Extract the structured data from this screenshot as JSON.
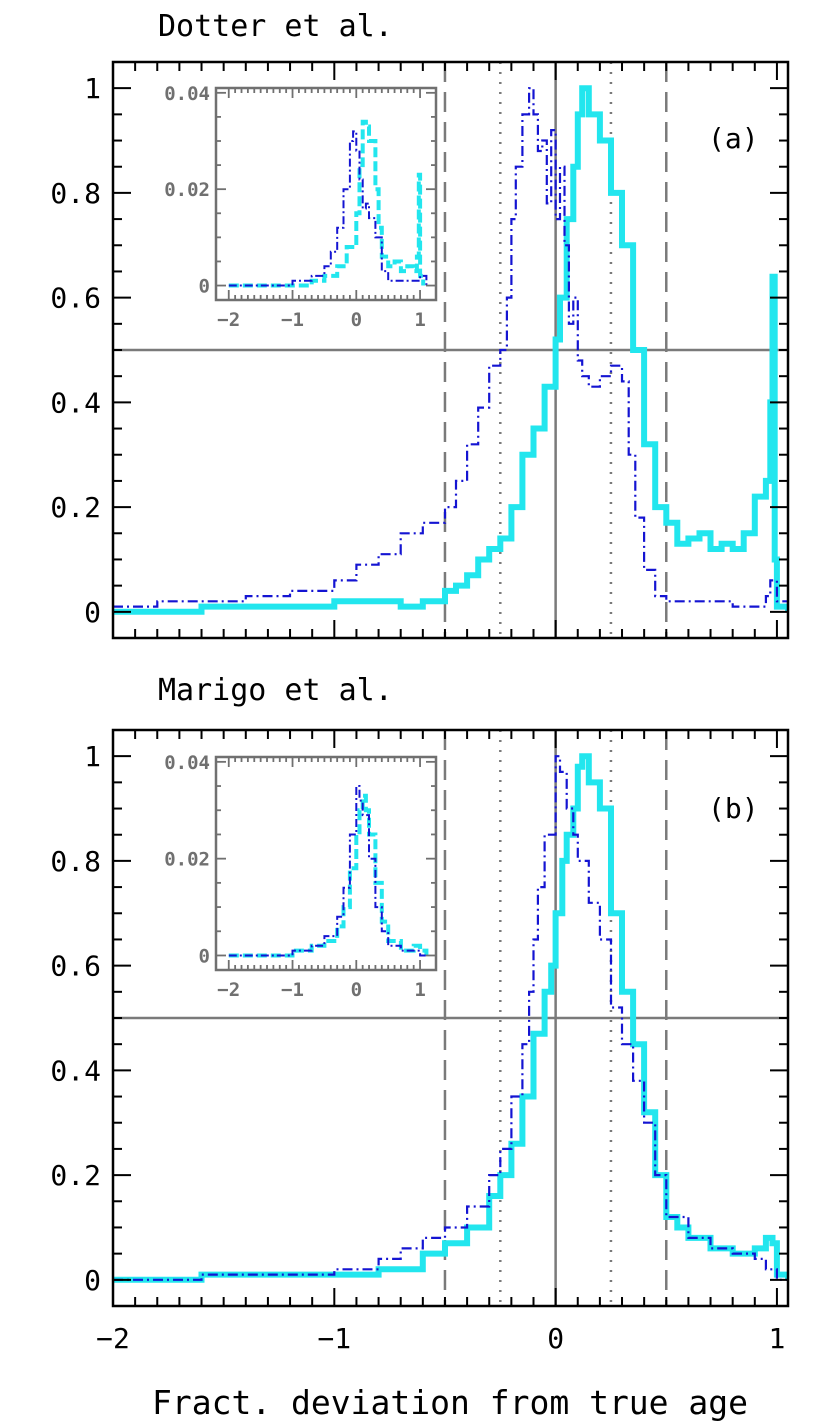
{
  "figure": {
    "xlabel": "Fract. deviation from true age"
  },
  "colors": {
    "series_blue": "#1414d2",
    "series_cyan": "#22e6ee",
    "reference_lines": "#7a7a7a",
    "axes": "#000000",
    "inset_axes": "#707070"
  },
  "chart_data": [
    {
      "type": "line",
      "title": "Dotter et al.",
      "panel_label": "(a)",
      "xlim": [
        -2,
        1.05
      ],
      "ylim": [
        -0.05,
        1.05
      ],
      "xticks": [
        -2,
        -1,
        0,
        1
      ],
      "yticks": [
        0,
        0.2,
        0.4,
        0.6,
        0.8,
        1
      ],
      "ytick_labels": [
        "0",
        "0.2",
        "0.4",
        "0.6",
        "0.8",
        "1"
      ],
      "grid": false,
      "reference_lines": {
        "horizontal_solid": 0.5,
        "vertical_solid": 0,
        "vertical_dotted": [
          -0.25,
          0.25
        ],
        "vertical_dashed": [
          -0.5,
          0.5
        ]
      },
      "series": [
        {
          "style": "dash-dot",
          "x": [
            -2.0,
            -1.8,
            -1.6,
            -1.4,
            -1.2,
            -1.0,
            -0.9,
            -0.8,
            -0.7,
            -0.6,
            -0.5,
            -0.45,
            -0.4,
            -0.35,
            -0.3,
            -0.25,
            -0.22,
            -0.2,
            -0.18,
            -0.15,
            -0.12,
            -0.1,
            -0.08,
            -0.06,
            -0.04,
            -0.02,
            0.0,
            0.02,
            0.04,
            0.06,
            0.08,
            0.1,
            0.12,
            0.15,
            0.2,
            0.25,
            0.3,
            0.33,
            0.36,
            0.4,
            0.45,
            0.5,
            0.6,
            0.7,
            0.8,
            0.9,
            0.95,
            0.97,
            0.99,
            1.0,
            1.05
          ],
          "y": [
            0.01,
            0.02,
            0.02,
            0.03,
            0.04,
            0.06,
            0.09,
            0.11,
            0.15,
            0.17,
            0.2,
            0.25,
            0.32,
            0.39,
            0.47,
            0.5,
            0.6,
            0.75,
            0.85,
            0.95,
            1.0,
            0.95,
            0.88,
            0.9,
            0.78,
            0.92,
            0.75,
            0.85,
            0.7,
            0.55,
            0.6,
            0.48,
            0.45,
            0.43,
            0.45,
            0.47,
            0.44,
            0.3,
            0.18,
            0.08,
            0.03,
            0.02,
            0.02,
            0.02,
            0.01,
            0.01,
            0.03,
            0.06,
            0.06,
            0.02,
            0.0
          ]
        },
        {
          "style": "solid-thick",
          "x": [
            -2.0,
            -1.8,
            -1.6,
            -1.4,
            -1.2,
            -1.0,
            -0.8,
            -0.7,
            -0.6,
            -0.5,
            -0.45,
            -0.4,
            -0.35,
            -0.3,
            -0.25,
            -0.2,
            -0.15,
            -0.1,
            -0.05,
            0.0,
            0.02,
            0.05,
            0.08,
            0.1,
            0.12,
            0.15,
            0.2,
            0.25,
            0.3,
            0.35,
            0.4,
            0.45,
            0.5,
            0.55,
            0.6,
            0.65,
            0.7,
            0.75,
            0.8,
            0.85,
            0.9,
            0.95,
            0.97,
            0.98,
            0.99,
            1.0,
            1.05
          ],
          "y": [
            0.0,
            0.0,
            0.01,
            0.01,
            0.01,
            0.02,
            0.02,
            0.01,
            0.02,
            0.04,
            0.05,
            0.07,
            0.1,
            0.12,
            0.14,
            0.2,
            0.3,
            0.35,
            0.43,
            0.52,
            0.6,
            0.75,
            0.85,
            0.95,
            1.0,
            0.95,
            0.9,
            0.8,
            0.7,
            0.5,
            0.32,
            0.2,
            0.17,
            0.13,
            0.14,
            0.15,
            0.12,
            0.13,
            0.12,
            0.15,
            0.22,
            0.25,
            0.4,
            0.64,
            0.1,
            0.01,
            0.0
          ]
        }
      ],
      "inset": {
        "xlim": [
          -2.2,
          1.25
        ],
        "ylim": [
          -0.003,
          0.041
        ],
        "xticks": [
          -2,
          -1,
          0,
          1
        ],
        "xtick_labels": [
          "-2",
          "-1",
          "0",
          "1"
        ],
        "yticks": [
          0,
          0.02,
          0.04
        ],
        "ytick_labels": [
          "0",
          "0.02",
          "0.04"
        ],
        "series": [
          {
            "style": "dash-dot",
            "x": [
              -2.0,
              -1.5,
              -1.0,
              -0.7,
              -0.5,
              -0.4,
              -0.3,
              -0.2,
              -0.1,
              -0.05,
              0.0,
              0.05,
              0.1,
              0.15,
              0.2,
              0.3,
              0.4,
              0.5,
              0.7,
              0.9,
              1.0,
              1.1
            ],
            "y": [
              0.0,
              0.0,
              0.001,
              0.002,
              0.004,
              0.007,
              0.012,
              0.02,
              0.03,
              0.032,
              0.028,
              0.022,
              0.016,
              0.017,
              0.014,
              0.01,
              0.003,
              0.001,
              0.001,
              0.001,
              0.002,
              0.0
            ]
          },
          {
            "style": "dash-thick",
            "x": [
              -2.0,
              -1.5,
              -1.0,
              -0.7,
              -0.5,
              -0.3,
              -0.15,
              0.0,
              0.05,
              0.1,
              0.15,
              0.2,
              0.3,
              0.35,
              0.4,
              0.5,
              0.6,
              0.7,
              0.8,
              0.9,
              0.95,
              0.98,
              1.0,
              1.05
            ],
            "y": [
              0.0,
              0.0,
              0.0,
              0.001,
              0.002,
              0.004,
              0.008,
              0.015,
              0.025,
              0.034,
              0.033,
              0.03,
              0.02,
              0.012,
              0.006,
              0.004,
              0.005,
              0.003,
              0.004,
              0.003,
              0.006,
              0.023,
              0.002,
              0.0
            ]
          }
        ]
      }
    },
    {
      "type": "line",
      "title": "Marigo et al.",
      "panel_label": "(b)",
      "xlim": [
        -2,
        1.05
      ],
      "ylim": [
        -0.05,
        1.05
      ],
      "xticks": [
        -2,
        -1,
        0,
        1
      ],
      "xtick_labels": [
        "-2",
        "-1",
        "0",
        "1"
      ],
      "yticks": [
        0,
        0.2,
        0.4,
        0.6,
        0.8,
        1
      ],
      "ytick_labels": [
        "0",
        "0.2",
        "0.4",
        "0.6",
        "0.8",
        "1"
      ],
      "grid": false,
      "reference_lines": {
        "horizontal_solid": 0.5,
        "vertical_solid": 0,
        "vertical_dotted": [
          -0.25,
          0.25
        ],
        "vertical_dashed": [
          -0.5,
          0.5
        ]
      },
      "series": [
        {
          "style": "dash-dot",
          "x": [
            -2.0,
            -1.6,
            -1.2,
            -1.0,
            -0.8,
            -0.7,
            -0.6,
            -0.5,
            -0.4,
            -0.3,
            -0.25,
            -0.2,
            -0.15,
            -0.12,
            -0.1,
            -0.08,
            -0.05,
            0.0,
            0.02,
            0.05,
            0.08,
            0.1,
            0.15,
            0.2,
            0.25,
            0.3,
            0.35,
            0.4,
            0.45,
            0.5,
            0.6,
            0.7,
            0.8,
            0.9,
            0.95,
            1.0,
            1.05
          ],
          "y": [
            0.0,
            0.01,
            0.01,
            0.02,
            0.04,
            0.06,
            0.08,
            0.1,
            0.14,
            0.2,
            0.25,
            0.35,
            0.45,
            0.55,
            0.65,
            0.75,
            0.85,
            1.0,
            0.97,
            0.9,
            0.85,
            0.8,
            0.72,
            0.65,
            0.52,
            0.45,
            0.38,
            0.3,
            0.2,
            0.12,
            0.08,
            0.06,
            0.05,
            0.04,
            0.02,
            0.0,
            0.0
          ]
        },
        {
          "style": "solid-thick",
          "x": [
            -2.0,
            -1.6,
            -1.2,
            -1.0,
            -0.8,
            -0.6,
            -0.5,
            -0.4,
            -0.3,
            -0.25,
            -0.2,
            -0.15,
            -0.1,
            -0.05,
            -0.02,
            0.0,
            0.03,
            0.05,
            0.08,
            0.1,
            0.12,
            0.15,
            0.2,
            0.25,
            0.3,
            0.35,
            0.4,
            0.45,
            0.5,
            0.55,
            0.6,
            0.7,
            0.8,
            0.9,
            0.95,
            0.98,
            1.0,
            1.05
          ],
          "y": [
            0.0,
            0.01,
            0.01,
            0.01,
            0.02,
            0.05,
            0.07,
            0.1,
            0.16,
            0.2,
            0.26,
            0.35,
            0.47,
            0.55,
            0.6,
            0.7,
            0.8,
            0.85,
            0.9,
            0.98,
            1.0,
            0.95,
            0.9,
            0.7,
            0.55,
            0.45,
            0.32,
            0.2,
            0.12,
            0.1,
            0.08,
            0.06,
            0.05,
            0.06,
            0.08,
            0.07,
            0.01,
            0.0
          ]
        }
      ],
      "inset": {
        "xlim": [
          -2.2,
          1.25
        ],
        "ylim": [
          -0.003,
          0.041
        ],
        "xticks": [
          -2,
          -1,
          0,
          1
        ],
        "xtick_labels": [
          "-2",
          "-1",
          "0",
          "1"
        ],
        "yticks": [
          0,
          0.02,
          0.04
        ],
        "ytick_labels": [
          "0",
          "0.02",
          "0.04"
        ],
        "series": [
          {
            "style": "dash-dot",
            "x": [
              -2.0,
              -1.5,
              -1.0,
              -0.7,
              -0.5,
              -0.3,
              -0.2,
              -0.1,
              0.0,
              0.05,
              0.1,
              0.2,
              0.3,
              0.4,
              0.5,
              0.7,
              0.9,
              1.0,
              1.1
            ],
            "y": [
              0.0,
              0.0,
              0.001,
              0.002,
              0.004,
              0.008,
              0.014,
              0.025,
              0.035,
              0.032,
              0.029,
              0.02,
              0.01,
              0.005,
              0.002,
              0.001,
              0.001,
              0.0,
              0.0
            ]
          },
          {
            "style": "dash-thick",
            "x": [
              -2.0,
              -1.5,
              -1.0,
              -0.7,
              -0.5,
              -0.3,
              -0.2,
              -0.1,
              0.0,
              0.05,
              0.1,
              0.15,
              0.2,
              0.3,
              0.4,
              0.5,
              0.7,
              0.9,
              1.0,
              1.1
            ],
            "y": [
              0.0,
              0.0,
              0.001,
              0.002,
              0.003,
              0.006,
              0.01,
              0.018,
              0.025,
              0.03,
              0.033,
              0.03,
              0.025,
              0.015,
              0.007,
              0.003,
              0.001,
              0.002,
              0.001,
              0.0
            ]
          }
        ]
      }
    }
  ]
}
